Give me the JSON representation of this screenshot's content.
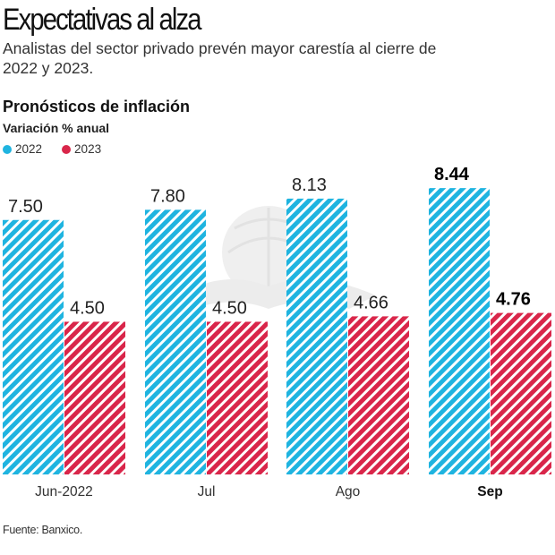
{
  "header": {
    "title": "Expectativas al alza",
    "subtitle": "Analistas del sector privado prevén mayor carestía al cierre de 2022 y 2023."
  },
  "footer": {
    "source": "Fuente: Banxico."
  },
  "colors": {
    "series_2022": "#1fb4e0",
    "series_2023": "#d9264a",
    "watermark": "#ececec"
  },
  "chart_data": {
    "type": "bar",
    "title": "Pronósticos de inflación",
    "subtitle": "Variación % anual",
    "xlabel": "",
    "ylabel": "Variación % anual",
    "ylim": [
      0,
      8.44
    ],
    "grid": false,
    "legend_position": "top-left",
    "pattern": "diagonal-hatch",
    "categories": [
      "Jun-2022",
      "Jul",
      "Ago",
      "Sep"
    ],
    "highlighted_category": "Sep",
    "series": [
      {
        "name": "2022",
        "values": [
          7.5,
          7.8,
          8.13,
          8.44
        ],
        "labels": [
          "7.50",
          "7.80",
          "8.13",
          "8.44"
        ]
      },
      {
        "name": "2023",
        "values": [
          4.5,
          4.5,
          4.66,
          4.76
        ],
        "labels": [
          "4.50",
          "4.50",
          "4.66",
          "4.76"
        ]
      }
    ]
  }
}
